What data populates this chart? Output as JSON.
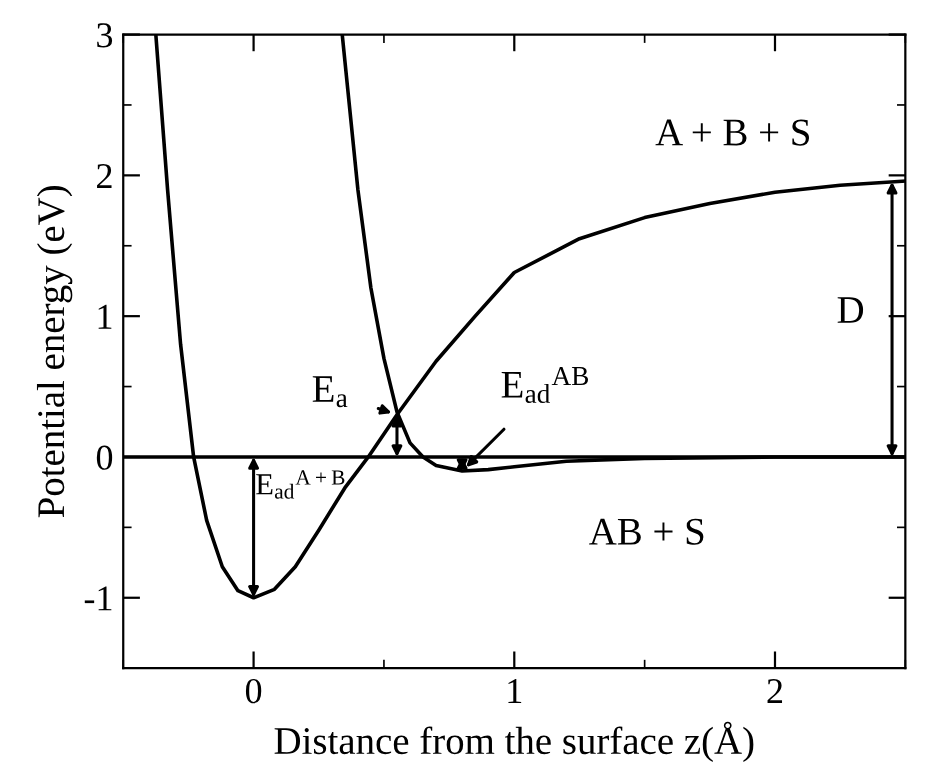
{
  "chart_data": {
    "type": "line",
    "xlabel": "Distance from the surface z(Å)",
    "ylabel": "Potential energy (eV)",
    "xlim": [
      -0.5,
      2.5
    ],
    "ylim": [
      -1.5,
      3
    ],
    "xticks": [
      0,
      1,
      2
    ],
    "yticks": [
      -1,
      0,
      1,
      2,
      3
    ],
    "grid": false,
    "legend": false,
    "marker": "none",
    "line_style": "solid",
    "series": [
      {
        "color": "#000000",
        "x": [
          -0.375,
          -0.33,
          -0.28,
          -0.23,
          -0.18,
          -0.12,
          -0.06,
          0,
          0.08,
          0.16,
          0.25,
          0.35,
          0.44,
          0.55,
          0.7,
          0.85,
          1.0,
          1.25,
          1.5,
          1.75,
          2.0,
          2.25,
          2.5
        ],
        "values": [
          3,
          1.9,
          0.8,
          0,
          -0.45,
          -0.78,
          -0.95,
          -1,
          -0.94,
          -0.78,
          -0.52,
          -0.22,
          0,
          0.3,
          0.68,
          1.0,
          1.31,
          1.55,
          1.7,
          1.8,
          1.88,
          1.93,
          1.96
        ]
      },
      {
        "color": "#000000",
        "x": [
          0.34,
          0.4,
          0.45,
          0.5,
          0.55,
          0.6,
          0.65,
          0.7,
          0.8,
          0.9,
          1.0,
          1.2,
          1.5,
          2.0,
          2.5
        ],
        "values": [
          3,
          1.9,
          1.2,
          0.7,
          0.32,
          0.1,
          0.0,
          -0.06,
          -0.1,
          -0.09,
          -0.07,
          -0.03,
          -0.01,
          0,
          0
        ]
      }
    ],
    "ref_lines": [
      {
        "axis": "y",
        "value": 0,
        "color": "#000000"
      }
    ],
    "annotations": [
      "A + B + S",
      "AB + S",
      "D",
      {
        "text": "E$_{a}$",
        "x": 0.55,
        "y": 0.3
      },
      {
        "text": "E$_{ad}$$^{AB}$",
        "x": 0.8,
        "y": -0.1
      },
      {
        "text": "E$_{ad}$$^{A+B}$",
        "x": 0,
        "y": -1
      }
    ]
  }
}
